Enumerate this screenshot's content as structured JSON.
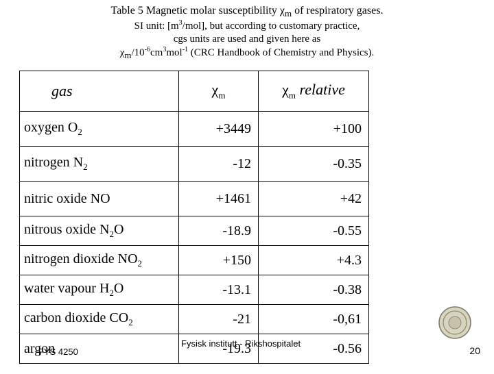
{
  "caption": {
    "line1_pre": "Table 5  Magnetic molar susceptibility ",
    "chi": "χ",
    "sub_m": "m",
    "line1_post": " of respiratory gases.",
    "line2": "SI unit: [m",
    "line2_sup": "3",
    "line2_post": "/mol], but according to customary practice,",
    "line3": "cgs units are used and given here as",
    "line4_pre": "χ",
    "line4_sub": "m",
    "line4_mid": "/10",
    "line4_sup1": "-6",
    "line4_mid2": "cm",
    "line4_sup2": "3",
    "line4_mid3": "mol",
    "line4_sup3": "-1",
    "line4_post": " (CRC Handbook of Chemistry and Physics)."
  },
  "headers": {
    "gas": "gas",
    "chi": "χ",
    "chi_sub": "m",
    "rel_pre": "χ",
    "rel_sub": "m",
    "rel_post": " relative"
  },
  "rows": [
    {
      "gas_pre": "oxygen O",
      "gas_sub": "2",
      "gas_post": "",
      "chi": "+3449",
      "rel": "+100",
      "tall": true
    },
    {
      "gas_pre": "nitrogen N",
      "gas_sub": "2",
      "gas_post": "",
      "chi": "-12",
      "rel": "-0.35",
      "tall": true
    },
    {
      "gas_pre": "nitric oxide NO",
      "gas_sub": "",
      "gas_post": "",
      "chi": "+1461",
      "rel": "+42",
      "tall": true
    },
    {
      "gas_pre": "nitrous oxide N",
      "gas_sub": "2",
      "gas_post": "O",
      "chi": "-18.9",
      "rel": "-0.55",
      "tall": false
    },
    {
      "gas_pre": "nitrogen dioxide NO",
      "gas_sub": "2",
      "gas_post": "",
      "chi": "+150",
      "rel": "+4.3",
      "tall": false
    },
    {
      "gas_pre": "water vapour H",
      "gas_sub": "2",
      "gas_post": "O",
      "chi": "-13.1",
      "rel": "-0.38",
      "tall": false
    },
    {
      "gas_pre": "carbon dioxide CO",
      "gas_sub": "2",
      "gas_post": "",
      "chi": "-21",
      "rel": "-0,61",
      "tall": false
    },
    {
      "gas_pre": "argon",
      "gas_sub": "",
      "gas_post": "",
      "chi": "-19.3",
      "rel": "-0.56",
      "tall": false
    }
  ],
  "overlays": {
    "course": "FYS 4250",
    "institute": "Fysisk institutt - Rikshospitalet",
    "page": "20"
  },
  "colors": {
    "border": "#000000",
    "bg": "#ffffff",
    "seal_ring": "#7a7a66",
    "seal_fill": "#d8d4c0"
  }
}
